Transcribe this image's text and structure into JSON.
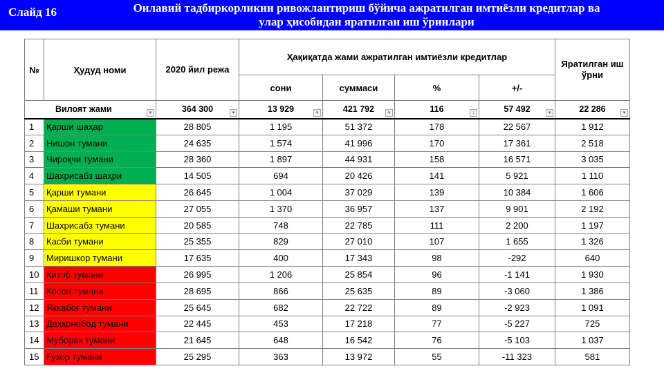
{
  "header": {
    "slide_label": "Слайд 16",
    "title_line1": "Оилавий тадбиркорликни ривожлантириш бўйича ажратилган имтиёзли кредитлар ва",
    "title_line2": "улар ҳисобидан яратилган иш ўринлари"
  },
  "columns": {
    "no": "№",
    "region": "Ҳудуд номи",
    "plan": "2020 йил режа",
    "actual_group": "Ҳақиқатда жами ажратилган имтиёзли кредитлар",
    "count": "сони",
    "sum": "суммаси",
    "percent": "%",
    "diff": "+/-",
    "jobs": "Яратилган иш ўрни"
  },
  "total": {
    "label": "Вилоят жами",
    "plan": "364 300",
    "count": "13 929",
    "sum": "421 792",
    "percent": "116",
    "diff": "57 492",
    "jobs": "22 286"
  },
  "colors": {
    "green": "#00b050",
    "yellow": "#ffff00",
    "red": "#ff0000",
    "header_blue": "#0000ff"
  },
  "rows": [
    {
      "no": "1",
      "name": "Қарши шаҳар",
      "plan": "28 805",
      "count": "1 195",
      "sum": "51 372",
      "percent": "178",
      "diff": "22 567",
      "jobs": "1 912",
      "color": "green"
    },
    {
      "no": "2",
      "name": "Нишон тумани",
      "plan": "24 635",
      "count": "1 574",
      "sum": "41 996",
      "percent": "170",
      "diff": "17 361",
      "jobs": "2 518",
      "color": "green"
    },
    {
      "no": "3",
      "name": "Чироқчи тумани",
      "plan": "28 360",
      "count": "1 897",
      "sum": "44 931",
      "percent": "158",
      "diff": "16 571",
      "jobs": "3 035",
      "color": "green"
    },
    {
      "no": "4",
      "name": "Шахрисабз шаҳри",
      "plan": "14 505",
      "count": "694",
      "sum": "20 426",
      "percent": "141",
      "diff": "5 921",
      "jobs": "1 110",
      "color": "green"
    },
    {
      "no": "5",
      "name": "Қарши тумани",
      "plan": "26 645",
      "count": "1 004",
      "sum": "37 029",
      "percent": "139",
      "diff": "10 384",
      "jobs": "1 606",
      "color": "yellow"
    },
    {
      "no": "6",
      "name": "Қамаши тумани",
      "plan": "27 055",
      "count": "1 370",
      "sum": "36 957",
      "percent": "137",
      "diff": "9 901",
      "jobs": "2 192",
      "color": "yellow"
    },
    {
      "no": "7",
      "name": "Шахрисабз тумани",
      "plan": "20 585",
      "count": "748",
      "sum": "22 785",
      "percent": "111",
      "diff": "2 200",
      "jobs": "1 197",
      "color": "yellow"
    },
    {
      "no": "8",
      "name": "Касби тумани",
      "plan": "25 355",
      "count": "829",
      "sum": "27 010",
      "percent": "107",
      "diff": "1 655",
      "jobs": "1 326",
      "color": "yellow"
    },
    {
      "no": "9",
      "name": "Миришкор тумани",
      "plan": "17 635",
      "count": "400",
      "sum": "17 343",
      "percent": "98",
      "diff": "-292",
      "jobs": "640",
      "color": "yellow"
    },
    {
      "no": "10",
      "name": "Китоб тумани",
      "plan": "26 995",
      "count": "1 206",
      "sum": "25 854",
      "percent": "96",
      "diff": "-1 141",
      "jobs": "1 930",
      "color": "red"
    },
    {
      "no": "11",
      "name": "Косон тумани",
      "plan": "28 695",
      "count": "866",
      "sum": "25 635",
      "percent": "89",
      "diff": "-3 060",
      "jobs": "1 386",
      "color": "red"
    },
    {
      "no": "12",
      "name": "Яккабоғ тумани",
      "plan": "25 645",
      "count": "682",
      "sum": "22 722",
      "percent": "89",
      "diff": "-2 923",
      "jobs": "1 091",
      "color": "red"
    },
    {
      "no": "13",
      "name": "Деҳқонобод тумани",
      "plan": "22 445",
      "count": "453",
      "sum": "17 218",
      "percent": "77",
      "diff": "-5 227",
      "jobs": "725",
      "color": "red"
    },
    {
      "no": "14",
      "name": "Муборак тумани",
      "plan": "21 645",
      "count": "648",
      "sum": "16 542",
      "percent": "76",
      "diff": "-5 103",
      "jobs": "1 037",
      "color": "red"
    },
    {
      "no": "15",
      "name": "Ғузор тумани",
      "plan": "25 295",
      "count": "363",
      "sum": "13 972",
      "percent": "55",
      "diff": "-11 323",
      "jobs": "581",
      "color": "red"
    }
  ]
}
